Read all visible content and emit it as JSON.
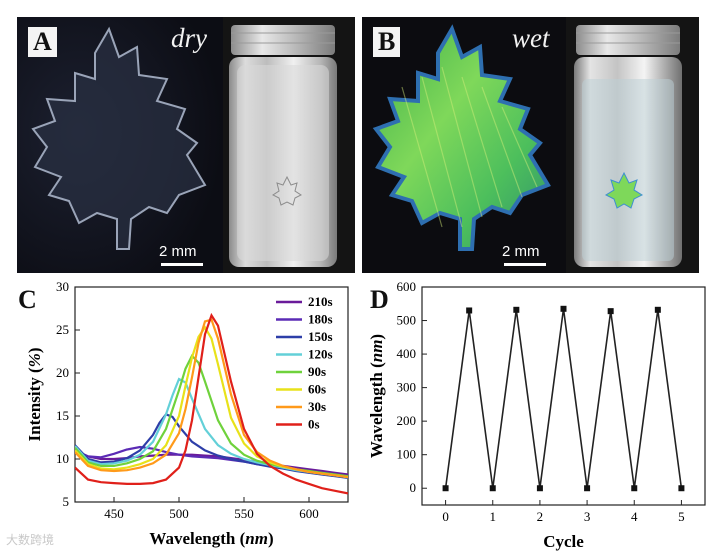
{
  "panels": {
    "A": {
      "letter": "A",
      "condition": "dry",
      "scale": "2 mm"
    },
    "B": {
      "letter": "B",
      "condition": "wet",
      "scale": "2 mm"
    },
    "C": {
      "letter": "C"
    },
    "D": {
      "letter": "D"
    }
  },
  "watermark": "大数跨境",
  "colors": {
    "210s": "#6a1b9a",
    "180s": "#5b2bb5",
    "150s": "#2d3ea8",
    "120s": "#63d0d8",
    "90s": "#6fd23c",
    "60s": "#e8e21a",
    "30s": "#ff9a1a",
    "0s": "#e0201a"
  },
  "chart_data": [
    {
      "type": "line",
      "xlabel": "Wavelength (nm)",
      "ylabel": "Intensity (%)",
      "xlim": [
        420,
        630
      ],
      "ylim": [
        5,
        30
      ],
      "x_ticks": [
        "450",
        "500",
        "550",
        "600"
      ],
      "y_ticks": [
        "5",
        "10",
        "15",
        "20",
        "25",
        "30"
      ],
      "legend_position": "top-right",
      "series": [
        {
          "name": "210s",
          "x": [
            420,
            430,
            440,
            450,
            460,
            470,
            480,
            490,
            500,
            510,
            520,
            530,
            540,
            550,
            560,
            570,
            580,
            590,
            600,
            610,
            620,
            630
          ],
          "y": [
            11.0,
            10.3,
            10.0,
            10.0,
            10.1,
            10.3,
            10.4,
            10.5,
            10.5,
            10.5,
            10.4,
            10.3,
            10.1,
            9.9,
            9.7,
            9.5,
            9.2,
            9.0,
            8.8,
            8.6,
            8.4,
            8.2
          ]
        },
        {
          "name": "180s",
          "x": [
            420,
            430,
            440,
            450,
            460,
            470,
            480,
            490,
            500,
            510,
            520,
            530,
            540,
            550,
            560,
            570,
            580,
            590,
            600,
            610,
            620,
            630
          ],
          "y": [
            11.0,
            10.3,
            10.2,
            10.6,
            11.1,
            11.4,
            11.2,
            10.8,
            10.5,
            10.3,
            10.2,
            10.1,
            9.9,
            9.7,
            9.4,
            9.2,
            9.0,
            8.7,
            8.5,
            8.3,
            8.1,
            7.9
          ]
        },
        {
          "name": "150s",
          "x": [
            420,
            430,
            440,
            450,
            460,
            470,
            480,
            485,
            490,
            495,
            500,
            510,
            520,
            530,
            540,
            550,
            560,
            570,
            580,
            590,
            600,
            610,
            620,
            630
          ],
          "y": [
            11.6,
            10.0,
            9.6,
            9.7,
            10.1,
            11.0,
            12.8,
            14.2,
            15.2,
            14.9,
            13.8,
            12.0,
            11.0,
            10.4,
            10.0,
            9.7,
            9.4,
            9.1,
            8.9,
            8.6,
            8.4,
            8.2,
            8.0,
            7.8
          ]
        },
        {
          "name": "120s",
          "x": [
            420,
            430,
            440,
            450,
            460,
            470,
            480,
            490,
            495,
            500,
            505,
            510,
            520,
            530,
            540,
            550,
            560,
            570,
            580,
            590,
            600,
            610,
            620,
            630
          ],
          "y": [
            11.5,
            9.8,
            9.4,
            9.5,
            9.8,
            10.5,
            12.0,
            15.2,
            17.4,
            19.3,
            18.9,
            17.0,
            13.5,
            11.6,
            10.6,
            10.0,
            9.6,
            9.3,
            9.0,
            8.7,
            8.5,
            8.3,
            8.1,
            7.9
          ]
        },
        {
          "name": "90s",
          "x": [
            420,
            430,
            440,
            450,
            460,
            470,
            480,
            490,
            500,
            505,
            510,
            515,
            520,
            530,
            540,
            550,
            560,
            570,
            580,
            590,
            600,
            610,
            620,
            630
          ],
          "y": [
            11.3,
            9.6,
            9.2,
            9.2,
            9.5,
            10.0,
            10.9,
            13.5,
            18.0,
            20.5,
            22.0,
            21.2,
            19.0,
            14.5,
            11.8,
            10.5,
            9.8,
            9.4,
            9.1,
            8.8,
            8.6,
            8.4,
            8.2,
            8.0
          ]
        },
        {
          "name": "60s",
          "x": [
            420,
            430,
            440,
            450,
            460,
            470,
            480,
            490,
            500,
            505,
            510,
            515,
            520,
            525,
            530,
            540,
            550,
            560,
            570,
            580,
            590,
            600,
            610,
            620,
            630
          ],
          "y": [
            11.0,
            9.4,
            8.9,
            8.8,
            9.0,
            9.4,
            10.0,
            11.6,
            15.0,
            18.5,
            21.8,
            24.2,
            25.3,
            24.0,
            21.0,
            14.8,
            11.8,
            10.3,
            9.6,
            9.1,
            8.8,
            8.5,
            8.3,
            8.1,
            7.9
          ]
        },
        {
          "name": "30s",
          "x": [
            420,
            430,
            440,
            450,
            460,
            470,
            480,
            490,
            500,
            505,
            510,
            515,
            520,
            525,
            530,
            540,
            550,
            560,
            570,
            580,
            590,
            600,
            610,
            620,
            630
          ],
          "y": [
            10.8,
            9.2,
            8.7,
            8.6,
            8.7,
            9.0,
            9.5,
            10.5,
            13.0,
            15.8,
            19.5,
            23.5,
            26.0,
            26.2,
            24.0,
            17.5,
            12.8,
            10.8,
            9.8,
            9.2,
            8.8,
            8.5,
            8.3,
            8.1,
            7.9
          ]
        },
        {
          "name": "0s",
          "x": [
            420,
            430,
            440,
            450,
            460,
            470,
            480,
            490,
            500,
            505,
            510,
            515,
            520,
            525,
            530,
            540,
            550,
            560,
            570,
            580,
            590,
            600,
            610,
            620,
            630
          ],
          "y": [
            9.0,
            7.6,
            7.3,
            7.2,
            7.1,
            7.1,
            7.2,
            7.6,
            9.0,
            11.0,
            14.5,
            19.5,
            24.5,
            26.7,
            25.5,
            19.0,
            13.5,
            10.6,
            9.2,
            8.3,
            7.6,
            7.1,
            6.6,
            6.3,
            6.0
          ]
        }
      ]
    },
    {
      "type": "line",
      "xlabel": "Cycle",
      "ylabel": "Wavelength (nm)",
      "xlim": [
        -0.5,
        5.5
      ],
      "ylim": [
        -50,
        600
      ],
      "x_ticks": [
        "0",
        "1",
        "2",
        "3",
        "4",
        "5"
      ],
      "y_ticks": [
        "0",
        "100",
        "200",
        "300",
        "400",
        "500",
        "600"
      ],
      "x": [
        0,
        0.5,
        1,
        1.5,
        2,
        2.5,
        3,
        3.5,
        4,
        4.5,
        5
      ],
      "y": [
        0,
        530,
        0,
        532,
        0,
        535,
        0,
        528,
        0,
        532,
        0
      ]
    }
  ]
}
